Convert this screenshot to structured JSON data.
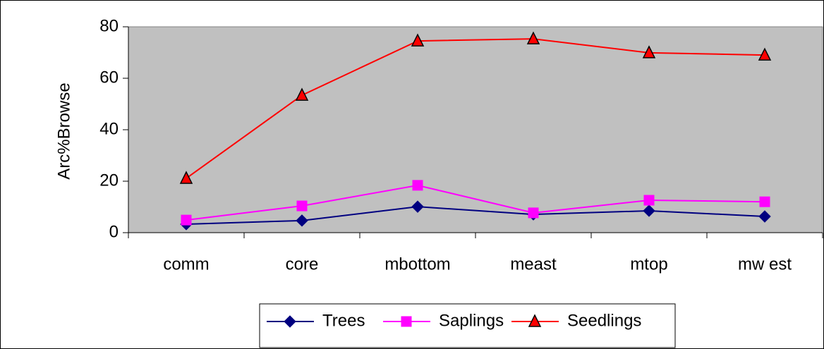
{
  "chart_data": {
    "type": "line",
    "y_label": "Arc%Browse",
    "categories": [
      "comm",
      "core",
      "mbottom",
      "meast",
      "mtop",
      "mw est"
    ],
    "series": [
      {
        "name": "Trees",
        "color": "#000080",
        "marker": "diamond",
        "values": [
          3.3,
          4.7,
          10.1,
          7.1,
          8.5,
          6.3
        ]
      },
      {
        "name": "Saplings",
        "color": "#ff00ff",
        "marker": "square",
        "values": [
          4.9,
          10.4,
          18.4,
          7.7,
          12.6,
          12
        ]
      },
      {
        "name": "Seedlings",
        "color": "#ff0000",
        "marker": "triangle",
        "values": [
          21.1,
          53.4,
          74.5,
          75.3,
          69.9,
          69
        ]
      }
    ],
    "ylim": [
      0,
      80
    ],
    "yticks": [
      0,
      20,
      40,
      60,
      80
    ],
    "grid": false,
    "plot_background": "#c0c0c0",
    "legend": "bottom"
  }
}
